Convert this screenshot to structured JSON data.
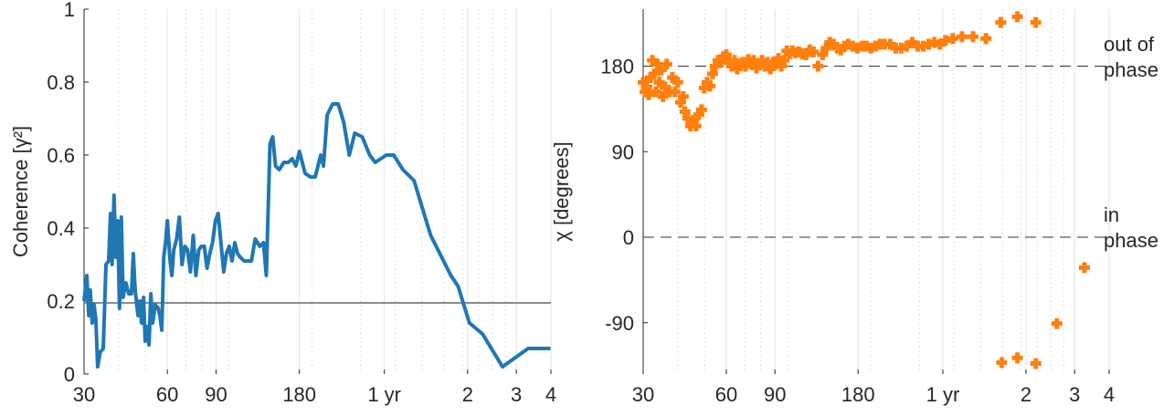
{
  "chart_data": [
    {
      "type": "line",
      "y_label": "Coherence [γ²]",
      "xlim": [
        30,
        1460
      ],
      "log_x": true,
      "xticks": [
        30,
        60,
        90,
        180,
        {
          "value": 365,
          "label": "1 yr"
        },
        {
          "value": 730,
          "label": "2"
        },
        {
          "value": 1095,
          "label": "3"
        },
        {
          "value": 1460,
          "label": "4"
        }
      ],
      "minor_xticks": [
        40,
        50,
        70,
        80,
        100,
        200,
        300,
        400,
        500,
        600,
        700,
        800,
        900,
        1000
      ],
      "ylim": [
        0,
        1
      ],
      "yticks": [
        0,
        0.2,
        0.4,
        0.6,
        0.8,
        1
      ],
      "grid": true,
      "color": "#1f77b4",
      "reference_line": 0.195,
      "x": [
        30.0,
        30.7,
        31.2,
        31.6,
        32.1,
        32.6,
        33.1,
        33.6,
        34.3,
        35.2,
        36.0,
        36.8,
        37.4,
        37.9,
        38.5,
        39.1,
        39.7,
        40.3,
        40.9,
        41.5,
        42.5,
        43.5,
        44.5,
        45.2,
        45.9,
        47.0,
        47.7,
        48.4,
        49.2,
        49.9,
        50.7,
        51.5,
        52.3,
        53.1,
        54.3,
        55.6,
        56.4,
        57.3,
        58.2,
        59.1,
        60.0,
        61.4,
        62.3,
        63.3,
        64.8,
        66.3,
        67.8,
        69.4,
        71.0,
        72.7,
        74.4,
        76.1,
        77.9,
        79.7,
        81.6,
        83.5,
        85.4,
        87.4,
        89.5,
        91.6,
        93.7,
        95.9,
        98.1,
        100.4,
        102.8,
        105.2,
        107.6,
        110.2,
        113.6,
        117.1,
        120.8,
        124.6,
        129.5,
        133.5,
        136.7,
        140.9,
        144.2,
        147.6,
        152.2,
        158.2,
        164.4,
        169.6,
        174.8,
        180.2,
        188.7,
        197.6,
        205.3,
        215.0,
        220.0,
        226.8,
        237.5,
        248.7,
        260.4,
        272.7,
        285.5,
        303.8,
        323.1,
        338.3,
        354.2,
        370.9,
        394.5,
        426.0,
        467.3,
        536.9,
        635.0,
        675.0,
        741.2,
        826.0,
        975.6,
        1208.3,
        1455
      ],
      "values": [
        0.2,
        0.27,
        0.16,
        0.23,
        0.14,
        0.19,
        0.15,
        0.02,
        0.06,
        0.07,
        0.3,
        0.31,
        0.44,
        0.3,
        0.49,
        0.32,
        0.42,
        0.18,
        0.43,
        0.21,
        0.25,
        0.22,
        0.22,
        0.33,
        0.23,
        0.16,
        0.2,
        0.14,
        0.21,
        0.09,
        0.13,
        0.08,
        0.22,
        0.14,
        0.19,
        0.18,
        0.16,
        0.12,
        0.32,
        0.36,
        0.42,
        0.31,
        0.27,
        0.34,
        0.37,
        0.43,
        0.3,
        0.35,
        0.34,
        0.28,
        0.38,
        0.27,
        0.34,
        0.35,
        0.35,
        0.29,
        0.33,
        0.36,
        0.42,
        0.44,
        0.36,
        0.28,
        0.33,
        0.35,
        0.31,
        0.36,
        0.33,
        0.32,
        0.31,
        0.31,
        0.31,
        0.37,
        0.35,
        0.36,
        0.27,
        0.63,
        0.65,
        0.57,
        0.56,
        0.58,
        0.58,
        0.59,
        0.57,
        0.61,
        0.55,
        0.54,
        0.54,
        0.6,
        0.57,
        0.71,
        0.74,
        0.74,
        0.69,
        0.6,
        0.66,
        0.65,
        0.6,
        0.58,
        0.59,
        0.6,
        0.6,
        0.56,
        0.53,
        0.38,
        0.27,
        0.24,
        0.14,
        0.11,
        0.02,
        0.07,
        0.07
      ]
    },
    {
      "type": "scatter",
      "y_label": "χ [degrees]",
      "xlim": [
        30,
        1460
      ],
      "log_x": true,
      "xticks": [
        30,
        60,
        90,
        180,
        {
          "value": 365,
          "label": "1 yr"
        },
        {
          "value": 730,
          "label": "2"
        },
        {
          "value": 1095,
          "label": "3"
        },
        {
          "value": 1460,
          "label": "4"
        }
      ],
      "minor_xticks": [
        40,
        50,
        70,
        80,
        100,
        200,
        300,
        400,
        500,
        600,
        700,
        800,
        900,
        1000
      ],
      "ylim": [
        -144,
        240
      ],
      "yticks": [
        -90,
        0,
        90,
        180
      ],
      "grid": true,
      "color": "#ff7f0e",
      "annotations": [
        {
          "text": "out of phase",
          "y": 180
        },
        {
          "text": "in phase",
          "y": 0
        }
      ],
      "x": [
        30.0,
        30.5,
        30.9,
        31.4,
        31.9,
        32.4,
        32.9,
        33.3,
        33.8,
        34.3,
        34.9,
        35.4,
        36.0,
        36.5,
        37.4,
        38.3,
        39.1,
        40.0,
        41.0,
        41.9,
        42.5,
        43.5,
        44.5,
        45.6,
        46.6,
        47.7,
        48.8,
        49.9,
        51.1,
        52.3,
        53.5,
        54.7,
        56.0,
        57.3,
        58.6,
        60.0,
        61.4,
        62.8,
        64.3,
        65.7,
        67.3,
        68.8,
        70.4,
        72.1,
        73.7,
        75.4,
        77.2,
        79.0,
        80.8,
        82.7,
        84.6,
        86.6,
        88.6,
        90.6,
        92.7,
        94.9,
        97.1,
        99.4,
        101.7,
        104.0,
        106.5,
        109.8,
        113.2,
        116.7,
        120.3,
        124.1,
        128.9,
        133.9,
        137.9,
        142.2,
        146.6,
        151.2,
        155.9,
        160.7,
        165.7,
        172.2,
        178.8,
        185.8,
        193.0,
        200.4,
        208.2,
        216.3,
        224.6,
        235.2,
        246.3,
        257.9,
        270.1,
        282.8,
        296.1,
        310.1,
        324.7,
        340.0,
        356.1,
        372.9,
        396.6,
        428.2,
        469.5,
        522.8,
        591.4,
        679.5,
        791.9,
        596.0,
        679.5,
        791.9,
        944,
        1188
      ],
      "values": [
        163,
        153,
        158,
        150,
        168,
        186,
        172,
        153,
        182,
        163,
        176,
        148,
        158,
        182,
        153,
        168,
        153,
        163,
        142,
        148,
        132,
        125,
        117,
        123,
        117,
        129,
        134,
        157,
        163,
        159,
        172,
        180,
        186,
        184,
        190,
        192,
        184,
        180,
        186,
        177,
        182,
        184,
        180,
        187,
        182,
        186,
        178,
        182,
        186,
        180,
        184,
        177,
        184,
        182,
        188,
        180,
        186,
        196,
        193,
        196,
        194,
        195,
        193,
        192,
        197,
        195,
        180,
        192,
        199,
        205,
        203,
        199,
        197,
        201,
        203,
        201,
        199,
        201,
        201,
        199,
        201,
        203,
        203,
        203,
        199,
        199,
        201,
        205,
        201,
        201,
        203,
        205,
        203,
        207,
        209,
        211,
        211,
        209,
        226,
        232,
        226,
        -132,
        -127,
        -133,
        -91,
        -32
      ]
    }
  ]
}
